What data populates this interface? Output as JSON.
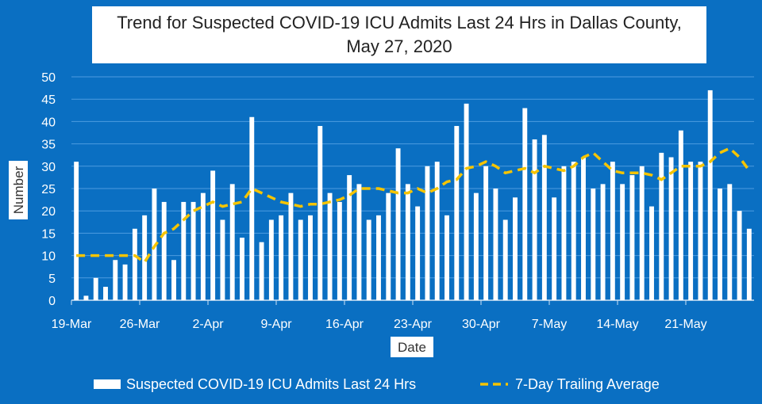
{
  "chart_data": {
    "type": "bar",
    "title": "Trend for Suspected COVID-19 ICU Admits Last 24 Hrs in Dallas County,",
    "subtitle": "May 27, 2020",
    "xlabel": "Date",
    "ylabel": "Number",
    "ylim": [
      0,
      50
    ],
    "yticks": [
      "0",
      "5",
      "10",
      "15",
      "20",
      "25",
      "30",
      "35",
      "40",
      "45",
      "50"
    ],
    "xticks": [
      {
        "label": "19-Mar",
        "index": 0
      },
      {
        "label": "26-Mar",
        "index": 7
      },
      {
        "label": "2-Apr",
        "index": 14
      },
      {
        "label": "9-Apr",
        "index": 21
      },
      {
        "label": "16-Apr",
        "index": 28
      },
      {
        "label": "23-Apr",
        "index": 35
      },
      {
        "label": "30-Apr",
        "index": 42
      },
      {
        "label": "7-May",
        "index": 49
      },
      {
        "label": "14-May",
        "index": 56
      },
      {
        "label": "21-May",
        "index": 63
      }
    ],
    "grid": true,
    "legend_position": "bottom",
    "colors": {
      "bar": "#ffffff",
      "avg": "#f5c400",
      "background": "#0a6fc2"
    },
    "series": [
      {
        "name": "Suspected COVID-19 ICU Admits Last 24 Hrs",
        "type": "bar",
        "values": [
          31,
          1,
          5,
          3,
          9,
          8,
          16,
          19,
          25,
          22,
          9,
          22,
          22,
          24,
          29,
          18,
          26,
          14,
          41,
          13,
          18,
          19,
          24,
          18,
          19,
          39,
          24,
          22,
          28,
          26,
          18,
          19,
          24,
          34,
          26,
          21,
          30,
          31,
          19,
          39,
          44,
          24,
          30,
          25,
          18,
          23,
          43,
          36,
          37,
          23,
          30,
          31,
          32,
          25,
          26,
          31,
          26,
          28,
          30,
          21,
          33,
          32,
          38,
          31,
          31,
          47,
          25,
          26,
          20,
          16
        ]
      },
      {
        "name": "7-Day Trailing Average",
        "type": "line",
        "style": "dashed",
        "values": [
          10,
          10,
          10,
          10,
          10,
          10,
          10,
          8.5,
          12,
          15,
          16,
          18,
          20,
          21,
          22,
          21,
          21.5,
          22,
          25,
          24,
          23,
          22,
          21.5,
          21,
          21.5,
          21.5,
          22,
          22.5,
          23.5,
          25,
          25,
          25,
          24.5,
          24,
          24,
          25,
          24,
          25,
          26.5,
          27,
          29.5,
          30,
          31,
          30,
          28.5,
          29,
          29.5,
          28.5,
          30,
          29.5,
          29,
          30,
          32,
          33,
          31,
          29,
          28.5,
          28.5,
          28.5,
          28,
          27,
          28.5,
          30,
          30,
          30,
          31,
          33,
          34,
          32,
          29
        ]
      }
    ]
  }
}
